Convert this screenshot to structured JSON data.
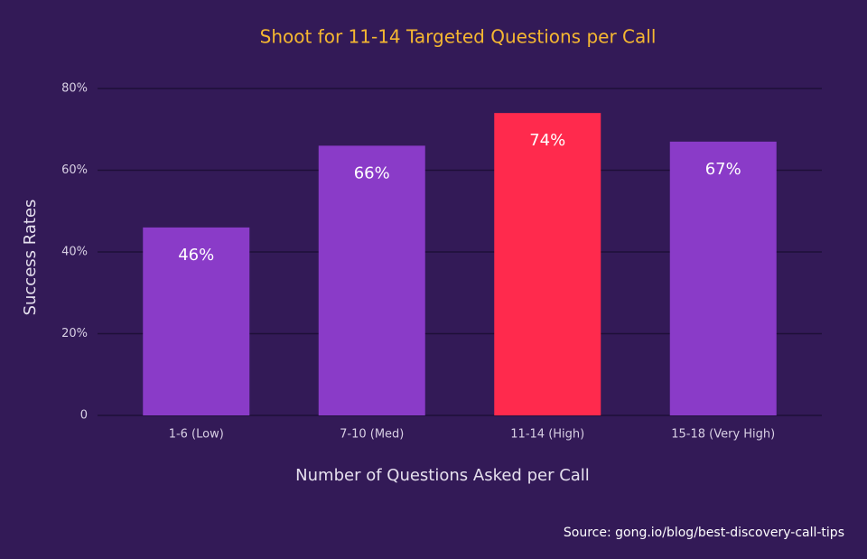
{
  "chart_data": {
    "type": "bar",
    "title": "Shoot for 11-14 Targeted Questions per Call",
    "x_label": "Number of Questions Asked per Call",
    "y_label": "Success Rates",
    "source": "Source: gong.io/blog/best-discovery-call-tips",
    "categories": [
      "1-6 (Low)",
      "7-10 (Med)",
      "11-14 (High)",
      "15-18 (Very High)"
    ],
    "values": [
      46,
      66,
      74,
      67
    ],
    "value_labels": [
      "46%",
      "66%",
      "74%",
      "67%"
    ],
    "colors": [
      "#8a3bc8",
      "#8a3bc8",
      "#ff2a4d",
      "#8a3bc8"
    ],
    "ylim": [
      0,
      80
    ],
    "yticks": [
      0,
      {
        "value": 20,
        "label": "20%"
      },
      {
        "value": 40,
        "label": "40%"
      },
      {
        "value": 60,
        "label": "60%"
      },
      {
        "value": 80,
        "label": "80%"
      }
    ],
    "grid": true
  }
}
